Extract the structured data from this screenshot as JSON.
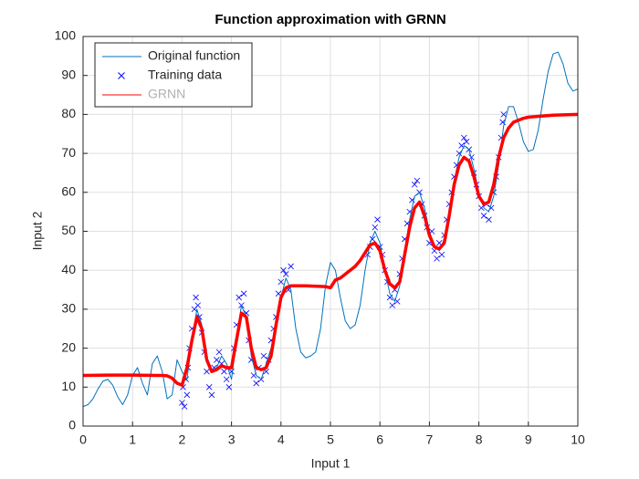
{
  "chart_data": {
    "type": "line",
    "title": "Function approximation with GRNN",
    "xlabel": "Input 1",
    "ylabel": "Input 2",
    "xlim": [
      0,
      10
    ],
    "ylim": [
      0,
      100
    ],
    "xticks": [
      0,
      1,
      2,
      3,
      4,
      5,
      6,
      7,
      8,
      9,
      10
    ],
    "yticks": [
      0,
      10,
      20,
      30,
      40,
      50,
      60,
      70,
      80,
      90,
      100
    ],
    "grid": true,
    "legend": "northwest",
    "series": [
      {
        "name": "Original function",
        "color": "#0072bd",
        "style": "line",
        "width": 1,
        "x": [
          0,
          0.1,
          0.2,
          0.3,
          0.4,
          0.5,
          0.6,
          0.7,
          0.8,
          0.9,
          1,
          1.1,
          1.2,
          1.3,
          1.4,
          1.5,
          1.6,
          1.7,
          1.8,
          1.9,
          2,
          2.1,
          2.2,
          2.3,
          2.4,
          2.5,
          2.6,
          2.7,
          2.8,
          2.9,
          3,
          3.1,
          3.2,
          3.3,
          3.4,
          3.5,
          3.6,
          3.7,
          3.8,
          3.9,
          4,
          4.1,
          4.2,
          4.3,
          4.4,
          4.5,
          4.6,
          4.7,
          4.8,
          4.9,
          5,
          5.1,
          5.2,
          5.3,
          5.4,
          5.5,
          5.6,
          5.7,
          5.8,
          5.9,
          6,
          6.1,
          6.2,
          6.3,
          6.4,
          6.5,
          6.6,
          6.7,
          6.8,
          6.9,
          7,
          7.1,
          7.2,
          7.3,
          7.4,
          7.5,
          7.6,
          7.7,
          7.8,
          7.9,
          8,
          8.1,
          8.2,
          8.3,
          8.4,
          8.5,
          8.6,
          8.7,
          8.8,
          8.9,
          9,
          9.1,
          9.2,
          9.3,
          9.4,
          9.5,
          9.6,
          9.7,
          9.8,
          9.9,
          10
        ],
        "values": [
          5,
          5.5,
          7,
          9.5,
          11.5,
          12,
          10.5,
          7.5,
          5.5,
          8,
          13,
          15,
          11,
          8,
          16,
          18,
          14,
          7,
          8,
          17,
          14,
          12,
          22,
          30,
          26,
          18,
          14,
          15,
          18,
          16,
          12,
          22,
          31,
          28,
          18,
          13,
          12,
          16,
          20,
          26,
          33,
          38,
          35,
          25,
          19,
          17.5,
          18,
          19,
          25,
          36,
          42,
          40,
          33,
          27,
          25,
          26,
          31,
          40,
          47,
          50,
          47,
          40,
          34,
          32,
          36,
          45,
          53,
          59,
          60,
          56,
          50,
          46,
          45,
          48,
          55,
          63,
          69,
          72,
          71,
          66,
          60,
          56,
          55,
          59,
          67,
          77,
          82,
          82,
          78,
          73,
          70.5,
          71,
          76,
          84,
          91,
          95.5,
          96,
          93,
          88,
          86,
          86.5
        ]
      },
      {
        "name": "Training data",
        "color": "#0000ff",
        "style": "x",
        "x": [
          2,
          2.02,
          2.05,
          2.08,
          2.1,
          2.12,
          2.15,
          2.2,
          2.25,
          2.28,
          2.32,
          2.35,
          2.4,
          2.45,
          2.5,
          2.55,
          2.6,
          2.65,
          2.7,
          2.75,
          2.8,
          2.85,
          2.9,
          2.95,
          3,
          3.05,
          3.1,
          3.15,
          3.2,
          3.25,
          3.3,
          3.35,
          3.4,
          3.45,
          3.5,
          3.55,
          3.6,
          3.65,
          3.7,
          3.75,
          3.8,
          3.85,
          3.9,
          3.95,
          4,
          4.05,
          4.1,
          4.15,
          4.2,
          5.75,
          5.8,
          5.85,
          5.9,
          5.95,
          6,
          6.05,
          6.1,
          6.15,
          6.2,
          6.25,
          6.3,
          6.35,
          6.4,
          6.45,
          6.5,
          6.55,
          6.6,
          6.65,
          6.7,
          6.75,
          6.8,
          6.85,
          6.9,
          6.95,
          7,
          7.05,
          7.1,
          7.15,
          7.2,
          7.25,
          7.3,
          7.35,
          7.4,
          7.45,
          7.5,
          7.55,
          7.6,
          7.65,
          7.7,
          7.75,
          7.8,
          7.85,
          7.9,
          7.95,
          8,
          8.05,
          8.1,
          8.15,
          8.2,
          8.25,
          8.3,
          8.35,
          8.4,
          8.45,
          8.48,
          8.5
        ],
        "values": [
          6,
          10,
          5,
          12,
          8,
          15,
          20,
          25,
          30,
          33,
          31,
          28,
          24,
          19,
          14,
          10,
          8,
          15,
          17,
          19,
          16,
          14,
          12,
          10,
          14,
          20,
          26,
          33,
          31,
          34,
          29,
          22,
          17,
          13,
          11,
          15,
          12,
          18,
          14,
          17,
          22,
          25,
          28,
          34,
          37,
          40,
          39,
          35,
          41,
          44,
          46,
          48,
          51,
          53,
          46,
          44,
          40,
          37,
          33,
          31,
          35,
          32,
          39,
          43,
          48,
          52,
          55,
          58,
          62,
          63,
          60,
          57,
          54,
          51,
          47,
          50,
          45,
          43,
          47,
          44,
          49,
          53,
          57,
          60,
          64,
          67,
          70,
          72,
          74,
          73,
          71,
          69,
          65,
          62,
          59,
          56,
          54,
          57,
          53,
          56,
          60,
          64,
          69,
          74,
          78,
          80
        ]
      },
      {
        "name": "GRNN",
        "color": "#ff0000",
        "style": "line",
        "width": 3.5,
        "x": [
          0,
          0.5,
          1,
          1.5,
          1.6,
          1.7,
          1.8,
          1.9,
          2,
          2.1,
          2.2,
          2.3,
          2.4,
          2.5,
          2.6,
          2.7,
          2.8,
          2.9,
          3,
          3.1,
          3.2,
          3.3,
          3.4,
          3.5,
          3.6,
          3.7,
          3.8,
          3.9,
          4,
          4.1,
          4.2,
          4.5,
          4.9,
          5,
          5.1,
          5.2,
          5.3,
          5.4,
          5.5,
          5.6,
          5.7,
          5.8,
          5.9,
          6,
          6.1,
          6.2,
          6.3,
          6.4,
          6.5,
          6.6,
          6.7,
          6.8,
          6.9,
          7,
          7.1,
          7.2,
          7.3,
          7.4,
          7.5,
          7.6,
          7.7,
          7.8,
          7.9,
          8,
          8.1,
          8.2,
          8.3,
          8.4,
          8.5,
          8.6,
          8.7,
          8.8,
          8.9,
          9,
          9.5,
          10
        ],
        "values": [
          13,
          13.1,
          13.1,
          13,
          13,
          12.9,
          12.3,
          11,
          10.5,
          15,
          22,
          28,
          25,
          17,
          14,
          14.5,
          15.5,
          15,
          15,
          22,
          29,
          28,
          20,
          15,
          14.5,
          15,
          18,
          26,
          33,
          35.5,
          36,
          36,
          35.8,
          35.5,
          37.5,
          38,
          39,
          40,
          41,
          42.5,
          44.5,
          46.5,
          47,
          45,
          40,
          36.5,
          35.5,
          37,
          44,
          51,
          56,
          57.5,
          54,
          49,
          46,
          45.5,
          47,
          54,
          62,
          67,
          69,
          68,
          64,
          59,
          57,
          57.5,
          62,
          69,
          74,
          76.5,
          78,
          78.5,
          79,
          79.3,
          79.8,
          80
        ]
      }
    ]
  }
}
